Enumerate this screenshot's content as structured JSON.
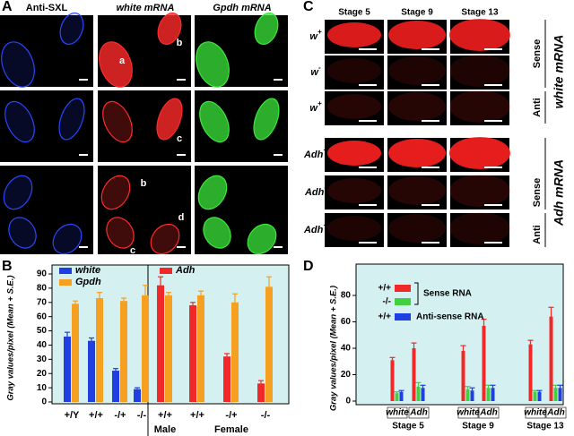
{
  "panel_a": {
    "letter": "A",
    "columns": [
      "Anti-SXL",
      "white mRNA",
      "Gpdh mRNA"
    ],
    "annotations": [
      "a",
      "b",
      "c",
      "b",
      "d",
      "c"
    ]
  },
  "panel_c": {
    "letter": "C",
    "columns": [
      "Stage 5",
      "Stage 9",
      "Stage 13"
    ],
    "rows": [
      {
        "base": "w",
        "sup": "+"
      },
      {
        "base": "w",
        "sup": "-"
      },
      {
        "base": "w",
        "sup": "+"
      },
      {
        "base": "Adh",
        "sup": "+"
      },
      {
        "base": "Adh",
        "sup": "-"
      },
      {
        "base": "Adh",
        "sup": "+"
      }
    ],
    "side_labels": [
      "Sense",
      "Anti",
      "Sense",
      "Anti"
    ],
    "probes": [
      "white mRNA",
      "Adh mRNA"
    ]
  },
  "chart_data": [
    {
      "type": "bar",
      "letter": "B",
      "ylabel": "Gray values/pixel (Mean + S.E.)",
      "categories": [
        "+/Y",
        "+/+",
        "-/+",
        "-/-",
        "+/+",
        "+/+",
        "-/+",
        "-/-"
      ],
      "groups": [
        "Male",
        "Female"
      ],
      "series": [
        {
          "name": "white",
          "color": "#1f3fe0",
          "values": [
            46,
            43,
            22,
            9,
            null,
            null,
            null,
            null
          ],
          "errors": [
            3,
            2,
            1.5,
            1,
            null,
            null,
            null,
            null
          ]
        },
        {
          "name": "Adh",
          "color": "#f02828",
          "values": [
            null,
            null,
            null,
            null,
            82,
            68,
            32,
            13
          ],
          "errors": [
            null,
            null,
            null,
            null,
            6,
            2,
            2,
            2
          ]
        },
        {
          "name": "Gpdh",
          "color": "#f5a020",
          "values": [
            69,
            73,
            71,
            75,
            75,
            75,
            70,
            81
          ],
          "errors": [
            2,
            4,
            2,
            7,
            2,
            3,
            6,
            7
          ]
        }
      ],
      "ylim": [
        0,
        90
      ],
      "yticks": [
        0,
        10,
        20,
        30,
        40,
        50,
        60,
        70,
        80,
        90
      ]
    },
    {
      "type": "bar",
      "letter": "D",
      "ylabel": "Gray values/pixel (Mean + S.E.)",
      "categories": [
        "white",
        "Adh",
        "white",
        "Adh",
        "white",
        "Adh"
      ],
      "groups": [
        "Stage 5",
        "Stage 9",
        "Stage 13"
      ],
      "series": [
        {
          "name": "+/+",
          "color": "#f02828",
          "values": [
            31,
            40,
            38,
            57,
            43,
            64
          ],
          "errors": [
            2,
            4,
            4,
            5,
            3,
            7
          ]
        },
        {
          "name": "-/-",
          "color": "#40d040",
          "values": [
            6,
            11,
            9,
            10,
            7,
            10
          ],
          "errors": [
            1,
            3,
            2,
            2,
            1,
            2
          ]
        },
        {
          "name": "+/+",
          "color": "#1f3fe0",
          "values": [
            7,
            10,
            8,
            10,
            7,
            10
          ],
          "errors": [
            1,
            2,
            2,
            2,
            1,
            2
          ]
        }
      ],
      "annotations": [
        "Sense RNA",
        "Anti-sense RNA"
      ],
      "ylim": [
        0,
        80
      ],
      "yticks": [
        0,
        20,
        40,
        60,
        80
      ]
    }
  ]
}
